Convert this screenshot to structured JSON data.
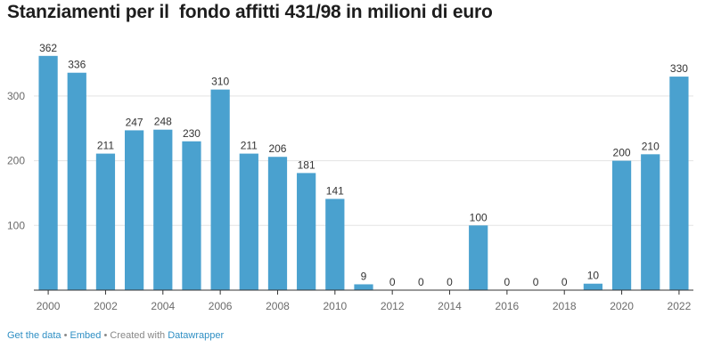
{
  "chart_data": {
    "type": "bar",
    "title": "Stanziamenti per il  fondo affitti 431/98 in milioni di euro",
    "xlabel": "",
    "ylabel": "",
    "categories": [
      "2000",
      "2001",
      "2002",
      "2003",
      "2004",
      "2005",
      "2006",
      "2007",
      "2008",
      "2009",
      "2010",
      "2011",
      "2012",
      "2013",
      "2014",
      "2015",
      "2016",
      "2017",
      "2018",
      "2019",
      "2020",
      "2021",
      "2022"
    ],
    "values": [
      362,
      336,
      211,
      247,
      248,
      230,
      310,
      211,
      206,
      181,
      141,
      9,
      0,
      0,
      0,
      100,
      0,
      0,
      0,
      10,
      200,
      210,
      330
    ],
    "data_labels": [
      "362",
      "336",
      "211",
      "247",
      "248",
      "230",
      "310",
      "211",
      "206",
      "181",
      "141",
      "9",
      "0",
      "0",
      "0",
      "100",
      "0",
      "0",
      "0",
      "10",
      "200",
      "210",
      "330"
    ],
    "x_tick_labels": [
      "2000",
      "2002",
      "2004",
      "2006",
      "2008",
      "2010",
      "2012",
      "2014",
      "2016",
      "2018",
      "2020",
      "2022"
    ],
    "y_ticks": [
      100,
      200,
      300
    ],
    "ylim": [
      0,
      370
    ],
    "grid": true,
    "bar_color": "#4aa1cf"
  },
  "footer": {
    "get_data": "Get the data",
    "separator": "•",
    "embed": "Embed",
    "created_with": "• Created with",
    "datawrapper": "Datawrapper"
  }
}
